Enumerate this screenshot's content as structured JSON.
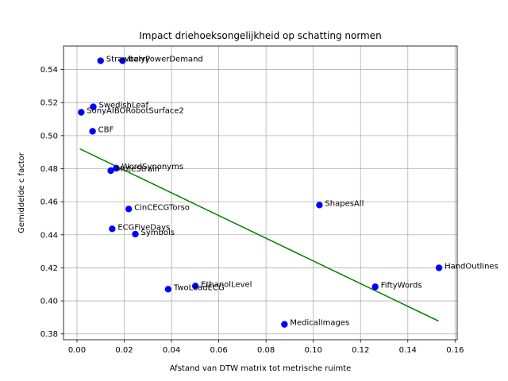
{
  "chart_data": {
    "type": "scatter",
    "title": "Impact driehoeksongelijkheid op schatting normen",
    "xlabel": "Afstand van DTW matrix tot metrische ruimte",
    "ylabel": "Gemiddelde c factor",
    "xlim": [
      -0.0057,
      0.1609
    ],
    "ylim": [
      0.3765,
      0.5542
    ],
    "xticks": [
      0.0,
      0.02,
      0.04,
      0.06,
      0.08,
      0.1,
      0.12,
      0.14,
      0.16
    ],
    "xtick_labels": [
      "0.00",
      "0.02",
      "0.04",
      "0.06",
      "0.08",
      "0.10",
      "0.12",
      "0.14",
      "0.16"
    ],
    "yticks": [
      0.38,
      0.4,
      0.42,
      0.44,
      0.46,
      0.48,
      0.5,
      0.52,
      0.54
    ],
    "ytick_labels": [
      "0.38",
      "0.40",
      "0.42",
      "0.44",
      "0.46",
      "0.48",
      "0.50",
      "0.52",
      "0.54"
    ],
    "grid": true,
    "point_color": "#0000ff",
    "line_color": "#008000",
    "points": [
      {
        "x": 0.01,
        "y": 0.5453,
        "label": "Strawberry"
      },
      {
        "x": 0.0193,
        "y": 0.5453,
        "label": "ItalyPowerDemand"
      },
      {
        "x": 0.0069,
        "y": 0.5174,
        "label": "SwedishLeaf"
      },
      {
        "x": 0.0018,
        "y": 0.5141,
        "label": "SonyAIBORobotSurface2"
      },
      {
        "x": 0.0066,
        "y": 0.5026,
        "label": "CBF"
      },
      {
        "x": 0.0166,
        "y": 0.4803,
        "label": "WordSynonyms"
      },
      {
        "x": 0.0143,
        "y": 0.4788,
        "label": "MoteStrain"
      },
      {
        "x": 0.0219,
        "y": 0.4556,
        "label": "CinCECGTorso"
      },
      {
        "x": 0.1026,
        "y": 0.458,
        "label": "ShapesAll"
      },
      {
        "x": 0.0149,
        "y": 0.4436,
        "label": "ECGFiveDays"
      },
      {
        "x": 0.0247,
        "y": 0.4404,
        "label": "Symbols"
      },
      {
        "x": 0.1532,
        "y": 0.42,
        "label": "HandOutlines"
      },
      {
        "x": 0.0501,
        "y": 0.409,
        "label": "EthanolLevel"
      },
      {
        "x": 0.0386,
        "y": 0.4071,
        "label": "TwoLeadECG"
      },
      {
        "x": 0.1262,
        "y": 0.4085,
        "label": "FiftyWords"
      },
      {
        "x": 0.0878,
        "y": 0.3858,
        "label": "MedicalImages"
      }
    ],
    "trend_line": {
      "x": [
        0.0012,
        0.153
      ],
      "y": [
        0.492,
        0.3878
      ]
    }
  }
}
